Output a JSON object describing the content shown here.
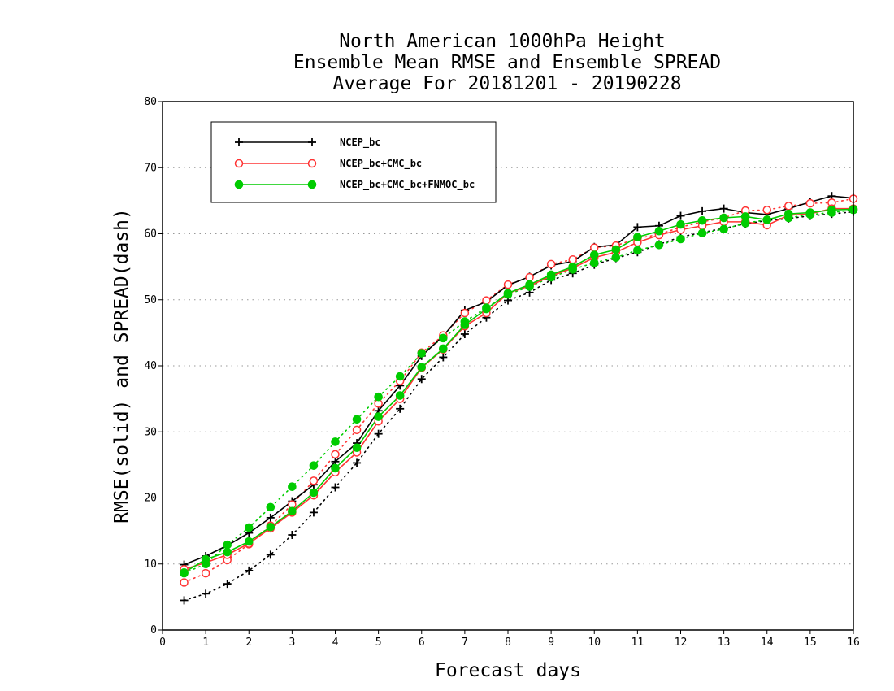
{
  "chart_data": {
    "type": "line",
    "title": [
      "North American 1000hPa Height",
      "Ensemble Mean RMSE and Ensemble SPREAD",
      "Average For 20181201 - 20190228"
    ],
    "xlabel": "Forecast days",
    "ylabel": "RMSE(solid) and SPREAD(dash)",
    "xlim": [
      0,
      16
    ],
    "ylim": [
      0,
      80
    ],
    "xticks": [
      "0",
      "1",
      "2",
      "3",
      "4",
      "5",
      "6",
      "7",
      "8",
      "9",
      "10",
      "11",
      "12",
      "13",
      "14",
      "15",
      "16"
    ],
    "yticks": [
      "0",
      "10",
      "20",
      "30",
      "40",
      "50",
      "60",
      "70",
      "80"
    ],
    "grid": "horizontal dotted",
    "legend_position": "top-left",
    "x": [
      0.5,
      1,
      1.5,
      2,
      2.5,
      3,
      3.5,
      4,
      4.5,
      5,
      5.5,
      6,
      6.5,
      7,
      7.5,
      8,
      8.5,
      9,
      9.5,
      10,
      10.5,
      11,
      11.5,
      12,
      12.5,
      13,
      13.5,
      14,
      14.5,
      15,
      15.5,
      16
    ],
    "series": [
      {
        "name": "NCEP_bc",
        "color": "#000000",
        "marker": "plus",
        "rmse": [
          9.9,
          11.2,
          12.8,
          14.7,
          17.0,
          19.5,
          22.0,
          25.5,
          28.3,
          33.2,
          37.0,
          41.5,
          44.5,
          48.4,
          49.7,
          52.2,
          53.5,
          55.2,
          55.8,
          58.0,
          58.3,
          61.0,
          61.2,
          62.7,
          63.4,
          63.8,
          63.2,
          62.9,
          63.8,
          64.8,
          65.7,
          65.4
        ],
        "spread": [
          4.5,
          5.5,
          7.0,
          9.0,
          11.4,
          14.4,
          17.8,
          21.6,
          25.3,
          29.7,
          33.5,
          38.0,
          41.3,
          44.8,
          47.3,
          49.9,
          51.1,
          53.0,
          54.0,
          55.3,
          56.3,
          57.2,
          58.4,
          59.5,
          60.2,
          60.8,
          61.5,
          62.0,
          62.3,
          62.7,
          63.0,
          63.3
        ]
      },
      {
        "name": "NCEP_bc+CMC_bc",
        "color": "#ff3333",
        "marker": "open-circle",
        "rmse": [
          9.2,
          10.2,
          11.4,
          13.1,
          15.4,
          17.8,
          20.4,
          23.9,
          26.9,
          31.6,
          35.0,
          39.7,
          42.5,
          46.0,
          48.0,
          51.0,
          52.1,
          53.6,
          54.8,
          56.4,
          57.2,
          58.7,
          59.8,
          60.6,
          61.2,
          61.8,
          61.8,
          61.3,
          62.8,
          63.0,
          63.8,
          63.8
        ],
        "spread": [
          7.2,
          8.6,
          10.6,
          13.0,
          15.8,
          19.0,
          22.6,
          26.6,
          30.3,
          34.3,
          37.7,
          42.0,
          44.6,
          48.0,
          49.9,
          52.3,
          53.4,
          55.4,
          56.1,
          57.9,
          58.2,
          59.3,
          59.9,
          61.0,
          61.8,
          62.4,
          63.5,
          63.6,
          64.2,
          64.6,
          64.7,
          65.3
        ]
      },
      {
        "name": "NCEP_bc+CMC_bc+FNMOC_bc",
        "color": "#00cc00",
        "marker": "filled-circle",
        "rmse": [
          8.7,
          10.7,
          11.8,
          13.4,
          15.6,
          18.0,
          20.8,
          24.5,
          27.6,
          32.3,
          35.5,
          39.8,
          42.6,
          46.2,
          48.6,
          51.0,
          52.3,
          53.8,
          55.0,
          56.8,
          57.6,
          59.5,
          60.4,
          61.4,
          62.0,
          62.4,
          62.6,
          62.1,
          63.0,
          63.2,
          63.6,
          63.7
        ],
        "spread": [
          8.6,
          10.0,
          12.9,
          15.5,
          18.6,
          21.7,
          24.9,
          28.5,
          31.9,
          35.3,
          38.4,
          41.9,
          44.2,
          46.7,
          48.8,
          50.8,
          52.0,
          53.4,
          54.6,
          55.6,
          56.4,
          57.5,
          58.3,
          59.2,
          60.1,
          60.7,
          61.6,
          62.1,
          62.4,
          62.9,
          63.2,
          63.6
        ]
      }
    ]
  }
}
